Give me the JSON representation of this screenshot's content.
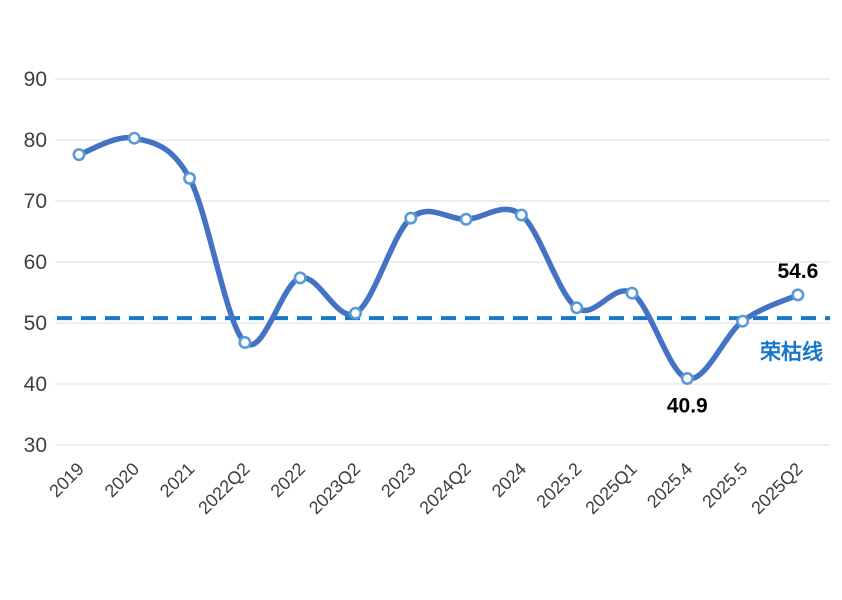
{
  "chart_data": {
    "type": "line",
    "categories": [
      "2019",
      "2020",
      "2021",
      "2022Q2",
      "2022",
      "2023Q2",
      "2023",
      "2024Q2",
      "2024",
      "2025.2",
      "2025Q1",
      "2025.4",
      "2025.5",
      "2025Q2"
    ],
    "values": [
      77.6,
      80.3,
      73.7,
      46.8,
      57.4,
      51.6,
      67.2,
      67.0,
      67.7,
      52.5,
      54.9,
      40.9,
      50.3,
      54.6
    ],
    "title": "",
    "xlabel": "",
    "ylabel": "",
    "ylim": [
      30,
      90
    ],
    "yticks": [
      90,
      80,
      70,
      60,
      50,
      40,
      30
    ],
    "grid": true,
    "legend_position": "none",
    "line_style": "smooth",
    "reference_line": {
      "value": 50.8,
      "label": "荣枯线",
      "style": "dashed"
    },
    "point_labels": [
      {
        "index": 11,
        "text": "40.9",
        "position": "below"
      },
      {
        "index": 13,
        "text": "54.6",
        "position": "above"
      }
    ],
    "colors": {
      "line": "#4472C4",
      "marker_fill": "#FFFFFF",
      "marker_stroke": "#5B9BD5",
      "reference": "#1778C8",
      "grid": "#E4E4E4",
      "axis_text": "#3F3F3F",
      "annotation_text": "#000000"
    }
  }
}
